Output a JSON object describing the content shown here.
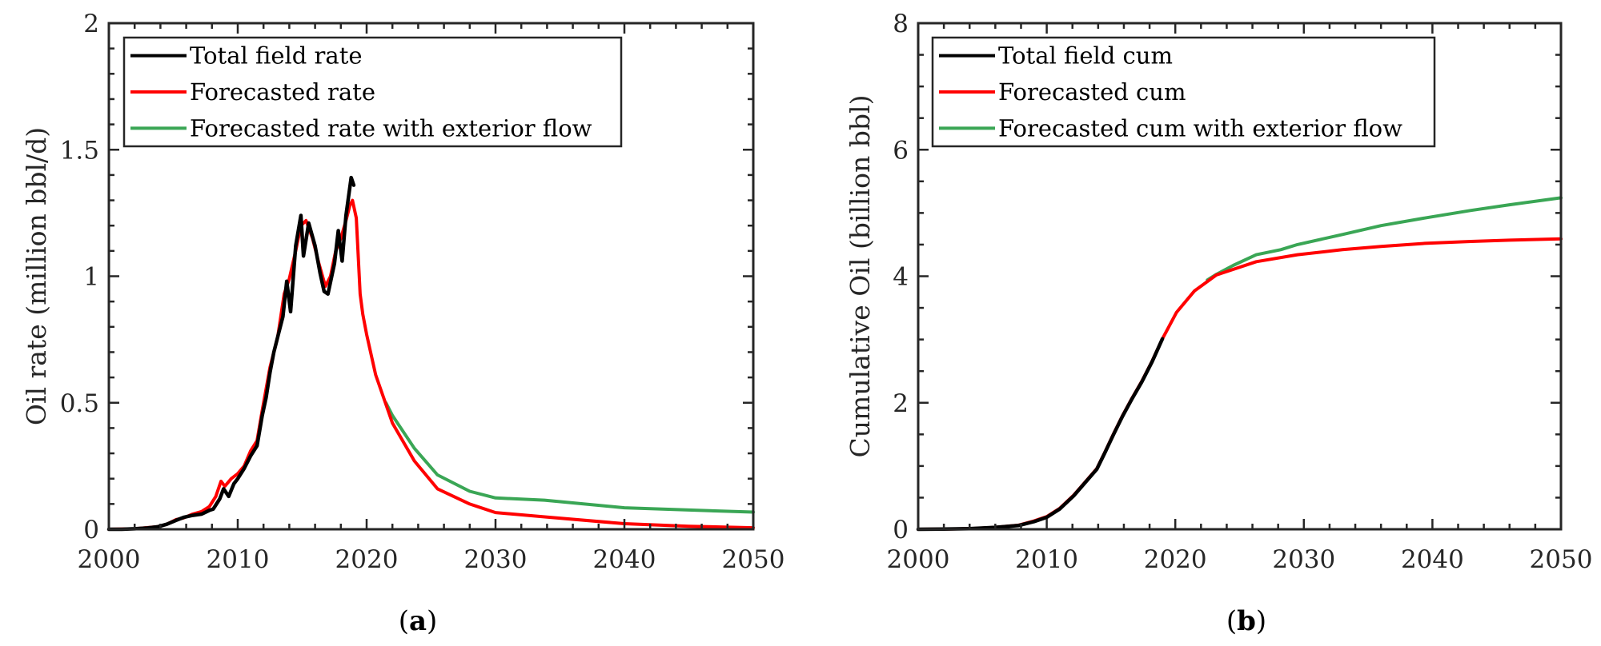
{
  "chart_data": [
    {
      "panel": "a",
      "caption": "(a)",
      "type": "line",
      "title": "",
      "xlabel": "",
      "ylabel": "Oil rate (million bbl/d)",
      "xlim": [
        2000,
        2050
      ],
      "ylim": [
        0,
        2
      ],
      "xticks": [
        2000,
        2010,
        2020,
        2030,
        2040,
        2050
      ],
      "xtick_labels": [
        "2000",
        "2010",
        "2020",
        "2030",
        "2040",
        "2050"
      ],
      "x_minor_step": 2,
      "yticks": [
        0,
        0.5,
        1,
        1.5,
        2
      ],
      "ytick_labels": [
        "0",
        "0.5",
        "1",
        "1.5",
        "2"
      ],
      "y_minor_step": 0.1,
      "grid": false,
      "legend_position": "top-left",
      "series": [
        {
          "name": "Total field rate",
          "color": "#000000",
          "x": [
            2000,
            2001,
            2002,
            2003,
            2003.8,
            2004.5,
            2005.2,
            2005.8,
            2006.5,
            2007.2,
            2007.8,
            2008.1,
            2008.6,
            2008.9,
            2009.3,
            2009.7,
            2010,
            2010.5,
            2011,
            2011.5,
            2011.9,
            2012.2,
            2012.5,
            2012.8,
            2013.1,
            2013.5,
            2013.8,
            2014.1,
            2014.5,
            2014.9,
            2015.1,
            2015.5,
            2016.0,
            2016.4,
            2016.7,
            2017.0,
            2017.5,
            2017.8,
            2018.1,
            2018.4,
            2018.8,
            2019.0
          ],
          "y": [
            0.0,
            0.0,
            0.002,
            0.005,
            0.01,
            0.02,
            0.035,
            0.047,
            0.055,
            0.06,
            0.075,
            0.08,
            0.12,
            0.16,
            0.13,
            0.18,
            0.2,
            0.24,
            0.29,
            0.33,
            0.45,
            0.52,
            0.62,
            0.7,
            0.76,
            0.84,
            0.98,
            0.86,
            1.12,
            1.24,
            1.08,
            1.21,
            1.12,
            1.01,
            0.94,
            0.93,
            1.05,
            1.18,
            1.06,
            1.24,
            1.39,
            1.36
          ]
        },
        {
          "name": "Forecasted rate",
          "color": "#ff0000",
          "x": [
            2000,
            2002,
            2003.8,
            2004.5,
            2005.2,
            2005.8,
            2006.5,
            2007.2,
            2007.8,
            2008.3,
            2008.7,
            2009.0,
            2009.5,
            2010,
            2010.5,
            2011,
            2011.5,
            2011.9,
            2012.5,
            2013.1,
            2013.6,
            2014.0,
            2014.5,
            2014.9,
            2015.3,
            2015.8,
            2016.3,
            2016.8,
            2017.2,
            2017.6,
            2018.0,
            2018.4,
            2018.7,
            2018.9,
            2019.2,
            2019.5,
            2019.7,
            2020,
            2020.7,
            2022,
            2023.7,
            2025.5,
            2028,
            2030,
            2034,
            2040,
            2045,
            2050
          ],
          "y": [
            0.0,
            0.002,
            0.01,
            0.02,
            0.038,
            0.045,
            0.06,
            0.07,
            0.09,
            0.13,
            0.19,
            0.17,
            0.2,
            0.22,
            0.25,
            0.31,
            0.35,
            0.47,
            0.64,
            0.76,
            0.93,
            0.99,
            1.1,
            1.2,
            1.22,
            1.15,
            1.05,
            0.96,
            1.0,
            1.1,
            1.15,
            1.22,
            1.28,
            1.3,
            1.23,
            0.93,
            0.85,
            0.77,
            0.61,
            0.42,
            0.27,
            0.16,
            0.1,
            0.066,
            0.048,
            0.022,
            0.012,
            0.006
          ]
        },
        {
          "name": "Forecasted rate with exterior flow",
          "color": "#3aa655",
          "x": [
            2021.5,
            2022,
            2023.7,
            2025.5,
            2028,
            2030,
            2033.8,
            2040,
            2045,
            2050
          ],
          "y": [
            0.5,
            0.45,
            0.32,
            0.215,
            0.15,
            0.124,
            0.115,
            0.085,
            0.076,
            0.068
          ]
        }
      ]
    },
    {
      "panel": "b",
      "caption": "(b)",
      "type": "line",
      "title": "",
      "xlabel": "",
      "ylabel": "Cumulative Oil (billion bbl)",
      "xlim": [
        2000,
        2050
      ],
      "ylim": [
        0,
        8
      ],
      "xticks": [
        2000,
        2010,
        2020,
        2030,
        2040,
        2050
      ],
      "xtick_labels": [
        "2000",
        "2010",
        "2020",
        "2030",
        "2040",
        "2050"
      ],
      "x_minor_step": 2,
      "yticks": [
        0,
        2,
        4,
        6,
        8
      ],
      "ytick_labels": [
        "0",
        "2",
        "4",
        "6",
        "8"
      ],
      "y_minor_step": 0.5,
      "grid": false,
      "legend_position": "top-left",
      "series": [
        {
          "name": "Total field cum",
          "color": "#000000",
          "x": [
            2000,
            2002,
            2004,
            2006,
            2007.8,
            2009,
            2010,
            2011,
            2012.1,
            2013,
            2013.9,
            2014.5,
            2015.2,
            2015.9,
            2016.6,
            2017.4,
            2018.2,
            2019.0
          ],
          "y": [
            0.0,
            0.002,
            0.01,
            0.03,
            0.06,
            0.12,
            0.19,
            0.32,
            0.53,
            0.74,
            0.95,
            1.2,
            1.5,
            1.79,
            2.05,
            2.33,
            2.65,
            3.01
          ]
        },
        {
          "name": "Forecasted cum",
          "color": "#ff0000",
          "x": [
            2000,
            2002,
            2004,
            2006,
            2007.8,
            2009,
            2010,
            2011,
            2012.1,
            2013,
            2013.9,
            2014.5,
            2015.2,
            2015.9,
            2016.6,
            2017.4,
            2018.2,
            2019.0,
            2020.1,
            2021.5,
            2023.2,
            2026.3,
            2029.5,
            2033,
            2036,
            2039.4,
            2043,
            2046,
            2050
          ],
          "y": [
            0.0,
            0.002,
            0.01,
            0.03,
            0.065,
            0.13,
            0.2,
            0.33,
            0.54,
            0.75,
            0.96,
            1.21,
            1.51,
            1.8,
            2.06,
            2.34,
            2.66,
            3.01,
            3.43,
            3.77,
            4.02,
            4.23,
            4.34,
            4.42,
            4.47,
            4.52,
            4.55,
            4.57,
            4.59
          ]
        },
        {
          "name": "Forecasted cum with exterior flow",
          "color": "#3aa655",
          "x": [
            2022.5,
            2023.2,
            2024.5,
            2026.3,
            2028.2,
            2029.5,
            2033,
            2036,
            2039.4,
            2043,
            2046,
            2050
          ],
          "y": [
            3.94,
            4.03,
            4.17,
            4.34,
            4.42,
            4.5,
            4.66,
            4.8,
            4.92,
            5.04,
            5.13,
            5.24
          ]
        }
      ]
    }
  ]
}
